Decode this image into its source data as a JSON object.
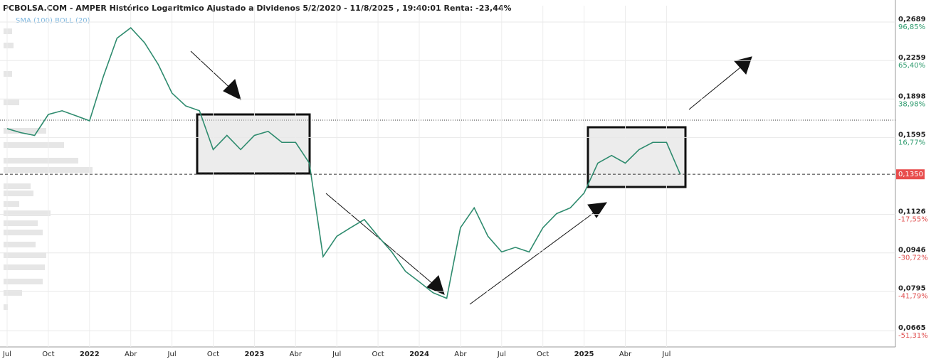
{
  "chart_data": {
    "type": "line",
    "title": "PCBOLSA.COM - AMPER Histórico Logaritmico Ajustado a Dividenos 5/2/2020 - 11/8/2025 , 19:40:01 Renta: -23,44%",
    "indicators": "SMA (100)  BOLL (20)",
    "log_scale": true,
    "grid": true,
    "categories": [
      "Jul",
      null,
      null,
      "Oct",
      null,
      null,
      "2022",
      null,
      null,
      "Abr",
      null,
      null,
      "Jul",
      null,
      null,
      "Oct",
      null,
      null,
      "2023",
      null,
      null,
      "Abr",
      null,
      null,
      "Jul",
      null,
      null,
      "Oct",
      null,
      null,
      "2024",
      null,
      null,
      "Abr",
      null,
      null,
      "Jul",
      null,
      null,
      "Oct",
      null,
      null,
      "2025",
      null,
      null,
      "Abr",
      null,
      null,
      "Jul",
      null
    ],
    "series": [
      {
        "name": "AMPER",
        "color": "#2e8b6e",
        "values": [
          0.166,
          0.163,
          0.161,
          0.177,
          0.18,
          0.176,
          0.172,
          0.21,
          0.25,
          0.262,
          0.245,
          0.222,
          0.195,
          0.184,
          0.18,
          0.151,
          0.161,
          0.151,
          0.161,
          0.164,
          0.156,
          0.156,
          0.142,
          0.093,
          0.102,
          0.106,
          0.11,
          0.102,
          0.095,
          0.087,
          0.083,
          0.079,
          0.077,
          0.106,
          0.116,
          0.102,
          0.095,
          0.097,
          0.095,
          0.106,
          0.113,
          0.116,
          0.124,
          0.142,
          0.147,
          0.142,
          0.151,
          0.156,
          0.156,
          0.135
        ]
      }
    ],
    "ylim": [
      0.0618,
      0.2896
    ],
    "yticks": [
      {
        "value": 0.2689,
        "label": "0,2689"
      },
      {
        "value": 0.2259,
        "label": "0,2259"
      },
      {
        "value": 0.1898,
        "label": "0,1898"
      },
      {
        "value": 0.1595,
        "label": "0,1595"
      },
      {
        "value": 0.1126,
        "label": "0,1126"
      },
      {
        "value": 0.0946,
        "label": "0,0946"
      },
      {
        "value": 0.0795,
        "label": "0,0795"
      },
      {
        "value": 0.0665,
        "label": "0,0665"
      }
    ],
    "ytick_changes": [
      "96,85%",
      "65,40%",
      "38,98%",
      "16,77%",
      "-17,55%",
      "-30,72%",
      "-41,79%",
      "-51,31%"
    ],
    "last_price": {
      "value": 0.135,
      "label": "0,1350"
    }
  }
}
